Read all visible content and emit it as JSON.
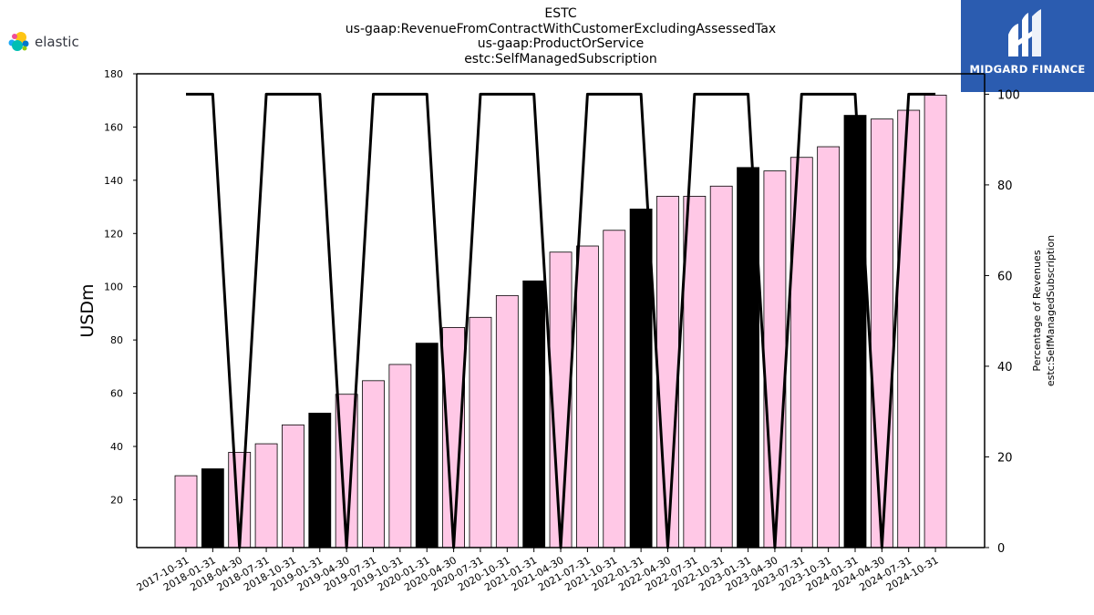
{
  "header": {
    "title_lines": [
      "ESTC",
      "us-gaap:RevenueFromContractWithCustomerExcludingAssessedTax",
      "us-gaap:ProductOrService",
      "estc:SelfManagedSubscription"
    ]
  },
  "logos": {
    "left_wordmark": "elastic",
    "right_brand": "MIDGARD FINANCE",
    "right_background": "#2b5cb0"
  },
  "chart_data": {
    "type": "bar",
    "categories": [
      "2017-10-31",
      "2018-01-31",
      "2018-04-30",
      "2018-07-31",
      "2018-10-31",
      "2019-01-31",
      "2019-04-30",
      "2019-07-31",
      "2019-10-31",
      "2020-01-31",
      "2020-04-30",
      "2020-07-31",
      "2020-10-31",
      "2021-01-31",
      "2021-04-30",
      "2021-07-31",
      "2021-10-31",
      "2022-01-31",
      "2022-04-30",
      "2022-07-31",
      "2022-10-31",
      "2023-01-31",
      "2023-04-30",
      "2023-07-31",
      "2023-10-31",
      "2024-01-31",
      "2024-04-30",
      "2024-07-31",
      "2024-10-31"
    ],
    "series": [
      {
        "type": "bar",
        "axis": "left",
        "values": [
          29,
          31.6,
          37.8,
          41,
          48.1,
          52.5,
          59.6,
          64.7,
          70.8,
          78.8,
          84.7,
          88.5,
          96.7,
          102.2,
          113,
          115.3,
          121.2,
          129.2,
          134,
          134,
          137.8,
          144.8,
          143.5,
          148.6,
          152.6,
          164.4,
          163,
          166.3,
          172
        ],
        "highlight": [
          false,
          true,
          false,
          false,
          false,
          true,
          false,
          false,
          false,
          true,
          false,
          false,
          false,
          true,
          false,
          false,
          false,
          true,
          false,
          false,
          false,
          true,
          false,
          false,
          false,
          true,
          false,
          false,
          false
        ]
      },
      {
        "type": "line",
        "axis": "right",
        "values": [
          100,
          100,
          0,
          100,
          100,
          100,
          0,
          100,
          100,
          100,
          0,
          100,
          100,
          100,
          0,
          100,
          100,
          100,
          0,
          100,
          100,
          100,
          0,
          100,
          100,
          100,
          0,
          100,
          100
        ]
      }
    ],
    "ylabel": "USDm",
    "y2label": [
      "Percentage of Revenues",
      "estc:SelfManagedSubscription"
    ],
    "ylim": [
      2,
      180
    ],
    "y2lim": [
      0,
      104.5
    ],
    "yticks": [
      20,
      40,
      60,
      80,
      100,
      120,
      140,
      160,
      180
    ],
    "y2ticks": [
      0,
      20,
      40,
      60,
      80,
      100
    ],
    "colors": {
      "bar_default": "#ffc8e6",
      "bar_highlight": "#000000",
      "bar_edge": "#000000",
      "line": "#000000"
    },
    "grid": false,
    "legend": "none"
  }
}
